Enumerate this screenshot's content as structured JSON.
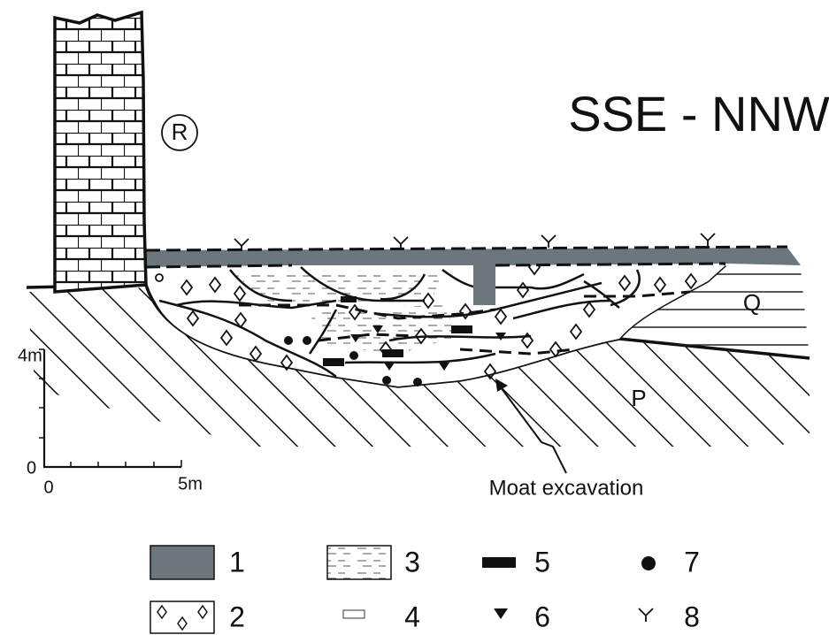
{
  "title": "SSE - NNW",
  "labels": {
    "tower": "R",
    "upper_layer": "Q",
    "bedrock": "P",
    "annotation": "Moat excavation"
  },
  "scale": {
    "y_top": "4m",
    "y_zero": "0",
    "x_zero": "0",
    "x_end": "5m"
  },
  "legend": [
    {
      "label": "1"
    },
    {
      "label": "2"
    },
    {
      "label": "3"
    },
    {
      "label": "4"
    },
    {
      "label": "5"
    },
    {
      "label": "6"
    },
    {
      "label": "7"
    },
    {
      "label": "8"
    }
  ]
}
